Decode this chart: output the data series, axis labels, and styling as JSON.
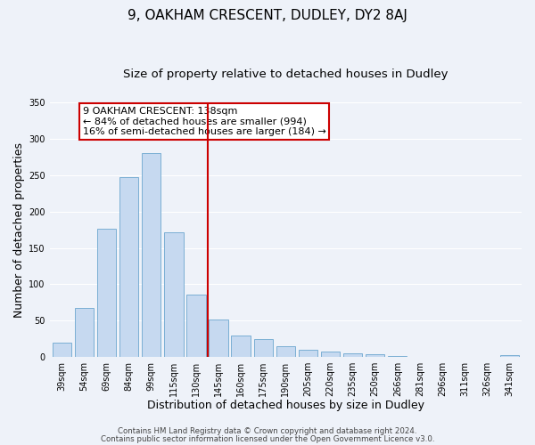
{
  "title": "9, OAKHAM CRESCENT, DUDLEY, DY2 8AJ",
  "subtitle": "Size of property relative to detached houses in Dudley",
  "xlabel": "Distribution of detached houses by size in Dudley",
  "ylabel": "Number of detached properties",
  "bar_labels": [
    "39sqm",
    "54sqm",
    "69sqm",
    "84sqm",
    "99sqm",
    "115sqm",
    "130sqm",
    "145sqm",
    "160sqm",
    "175sqm",
    "190sqm",
    "205sqm",
    "220sqm",
    "235sqm",
    "250sqm",
    "266sqm",
    "281sqm",
    "296sqm",
    "311sqm",
    "326sqm",
    "341sqm"
  ],
  "bar_values": [
    20,
    67,
    176,
    247,
    281,
    171,
    86,
    52,
    30,
    24,
    15,
    10,
    7,
    5,
    4,
    1,
    0,
    0,
    0,
    0,
    2
  ],
  "bar_color": "#c6d9f0",
  "bar_edge_color": "#7bafd4",
  "vline_color": "#cc0000",
  "annotation_title": "9 OAKHAM CRESCENT: 138sqm",
  "annotation_line1": "← 84% of detached houses are smaller (994)",
  "annotation_line2": "16% of semi-detached houses are larger (184) →",
  "annotation_box_edge": "#cc0000",
  "annotation_box_bg": "#ffffff",
  "ylim": [
    0,
    350
  ],
  "yticks": [
    0,
    50,
    100,
    150,
    200,
    250,
    300,
    350
  ],
  "footer1": "Contains HM Land Registry data © Crown copyright and database right 2024.",
  "footer2": "Contains public sector information licensed under the Open Government Licence v3.0.",
  "background_color": "#eef2f9",
  "grid_color": "#ffffff",
  "title_fontsize": 11,
  "subtitle_fontsize": 9.5,
  "axis_label_fontsize": 9,
  "tick_fontsize": 7,
  "annotation_fontsize": 8,
  "footer_fontsize": 6.2
}
